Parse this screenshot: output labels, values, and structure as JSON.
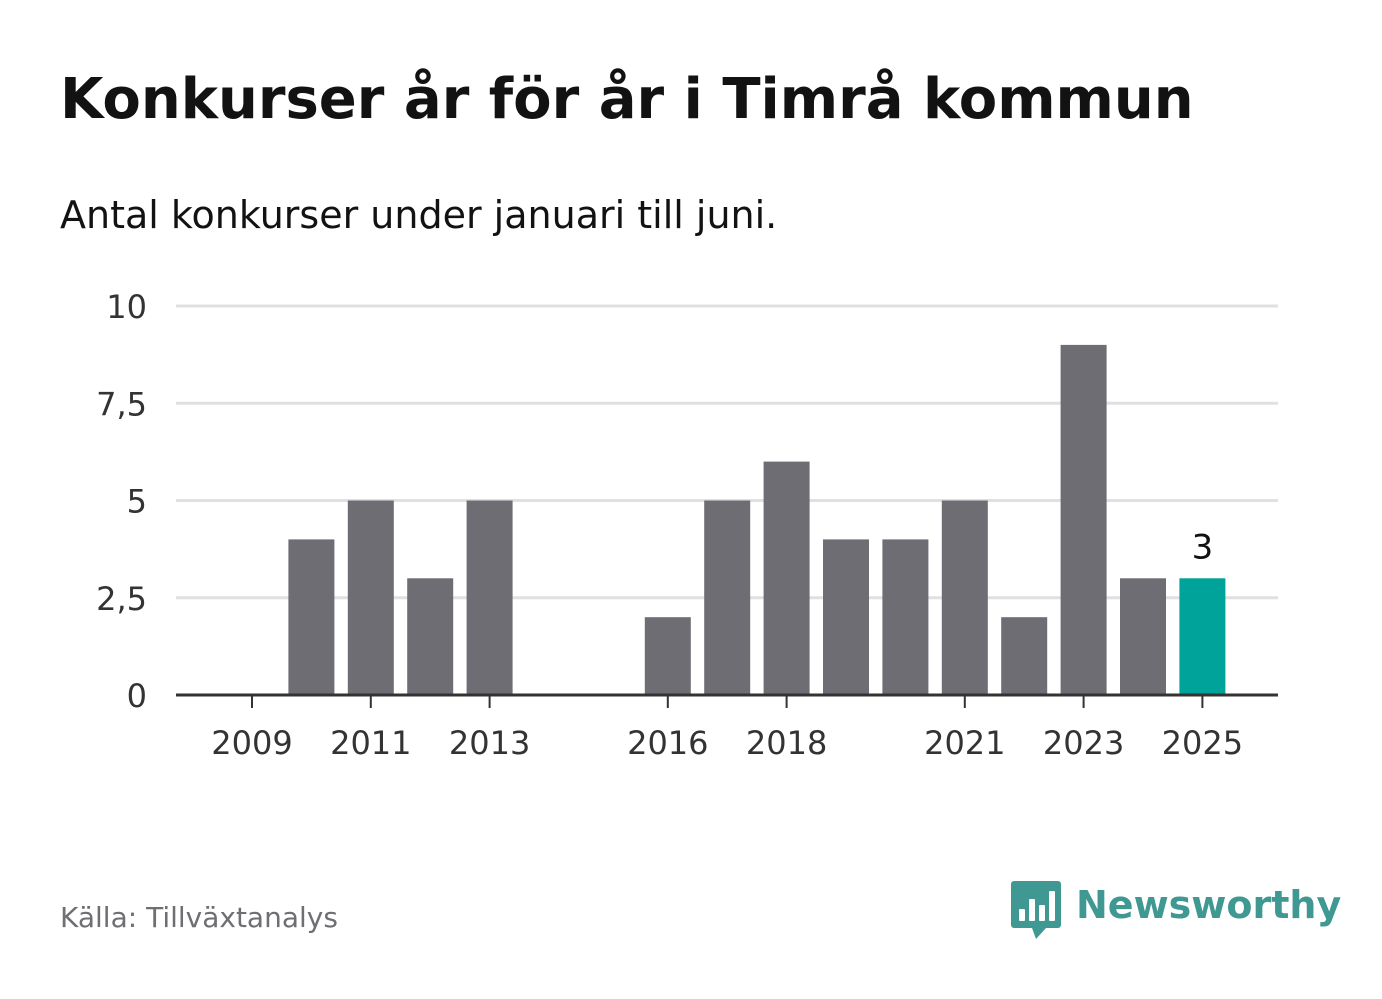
{
  "title": "Konkurser år för år i Timrå kommun",
  "subtitle": "Antal konkurser under januari till juni.",
  "source": "Källa: Tillväxtanalys",
  "logo": {
    "name": "Newsworthy",
    "icon": "bar-chart-speech-bubble-icon",
    "color": "#3f9891"
  },
  "colors": {
    "bar": "#6e6d73",
    "highlight": "#00a39a",
    "grid": "#e0e0e0",
    "axis": "#333333",
    "text": "#333333"
  },
  "chart_data": {
    "type": "bar",
    "title": "Konkurser år för år i Timrå kommun",
    "subtitle": "Antal konkurser under januari till juni.",
    "xlabel": "",
    "ylabel": "",
    "ylim": [
      0,
      10
    ],
    "yticks": [
      0,
      2.5,
      5,
      7.5,
      10
    ],
    "ytick_labels": [
      "0",
      "2,5",
      "5",
      "7,5",
      "10"
    ],
    "categories": [
      "2009",
      "2010",
      "2011",
      "2012",
      "2013",
      "2014",
      "2015",
      "2016",
      "2017",
      "2018",
      "2019",
      "2020",
      "2021",
      "2022",
      "2023",
      "2024",
      "2025"
    ],
    "xtick_labels": [
      "2009",
      "2011",
      "2013",
      "2016",
      "2018",
      "2021",
      "2023",
      "2025"
    ],
    "values": [
      0,
      4,
      5,
      3,
      5,
      0,
      0,
      2,
      5,
      6,
      4,
      4,
      5,
      2,
      9,
      3,
      3
    ],
    "highlight_category": "2025",
    "annotations": [
      {
        "category": "2025",
        "text": "3"
      }
    ],
    "grid": true,
    "legend": "none"
  }
}
